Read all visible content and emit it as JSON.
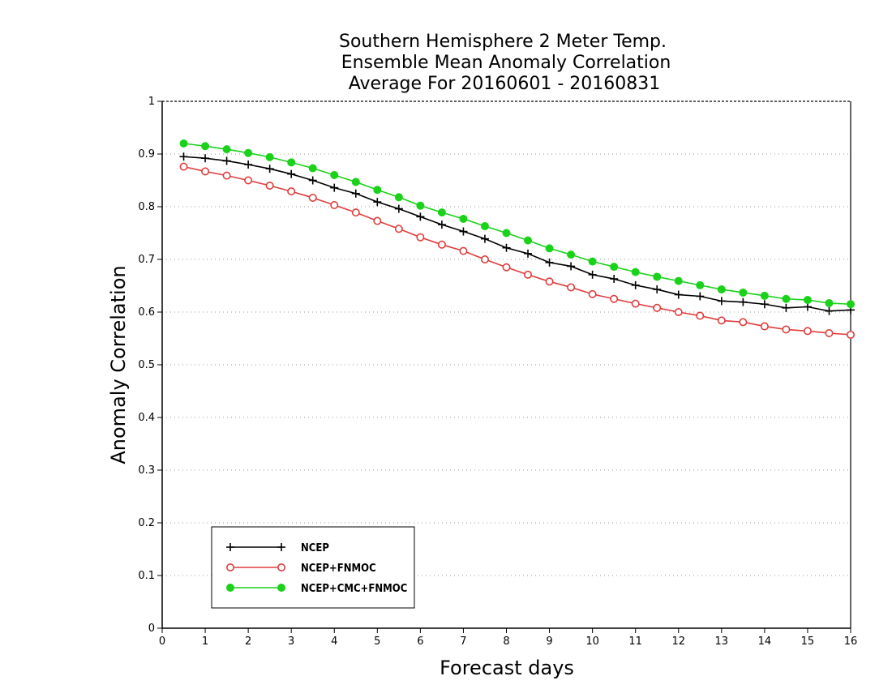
{
  "chart_data": {
    "type": "line",
    "title": [
      "Southern Hemisphere 2 Meter Temp.",
      "Ensemble Mean Anomaly Correlation",
      "Average For 20160601 - 20160831"
    ],
    "xlabel": "Forecast days",
    "ylabel": "Anomaly Correlation",
    "xlim": [
      0,
      16
    ],
    "ylim": [
      0,
      1
    ],
    "xticks": [
      0,
      1,
      2,
      3,
      4,
      5,
      6,
      7,
      8,
      9,
      10,
      11,
      12,
      13,
      14,
      15,
      16
    ],
    "yticks": [
      0,
      0.1,
      0.2,
      0.3,
      0.4,
      0.5,
      0.6,
      0.7,
      0.8,
      0.9,
      1
    ],
    "grid": true,
    "legend_position": "bottom-left",
    "x": [
      0.5,
      1,
      1.5,
      2,
      2.5,
      3,
      3.5,
      4,
      4.5,
      5,
      5.5,
      6,
      6.5,
      7,
      7.5,
      8,
      8.5,
      9,
      9.5,
      10,
      10.5,
      11,
      11.5,
      12,
      12.5,
      13,
      13.5,
      14,
      14.5,
      15,
      15.5,
      16
    ],
    "series": [
      {
        "name": "NCEP",
        "color": "#000000",
        "marker": "plus",
        "values": [
          0.895,
          0.892,
          0.887,
          0.88,
          0.872,
          0.862,
          0.85,
          0.836,
          0.825,
          0.809,
          0.796,
          0.781,
          0.766,
          0.753,
          0.739,
          0.722,
          0.711,
          0.694,
          0.687,
          0.671,
          0.663,
          0.651,
          0.643,
          0.633,
          0.63,
          0.621,
          0.619,
          0.615,
          0.608,
          0.61,
          0.602,
          0.604
        ]
      },
      {
        "name": "NCEP+FNMOC",
        "color": "#e03c3c",
        "marker": "open-circle",
        "values": [
          0.876,
          0.867,
          0.859,
          0.85,
          0.84,
          0.829,
          0.817,
          0.803,
          0.789,
          0.773,
          0.758,
          0.742,
          0.728,
          0.716,
          0.7,
          0.685,
          0.671,
          0.658,
          0.647,
          0.634,
          0.625,
          0.616,
          0.608,
          0.6,
          0.593,
          0.584,
          0.581,
          0.573,
          0.567,
          0.564,
          0.56,
          0.557
        ]
      },
      {
        "name": "NCEP+CMC+FNMOC",
        "color": "#19d219",
        "marker": "filled-circle",
        "values": [
          0.92,
          0.915,
          0.909,
          0.902,
          0.894,
          0.884,
          0.873,
          0.86,
          0.847,
          0.832,
          0.818,
          0.802,
          0.789,
          0.777,
          0.763,
          0.75,
          0.736,
          0.721,
          0.709,
          0.696,
          0.686,
          0.676,
          0.667,
          0.659,
          0.651,
          0.643,
          0.637,
          0.631,
          0.625,
          0.623,
          0.617,
          0.615
        ]
      }
    ]
  }
}
